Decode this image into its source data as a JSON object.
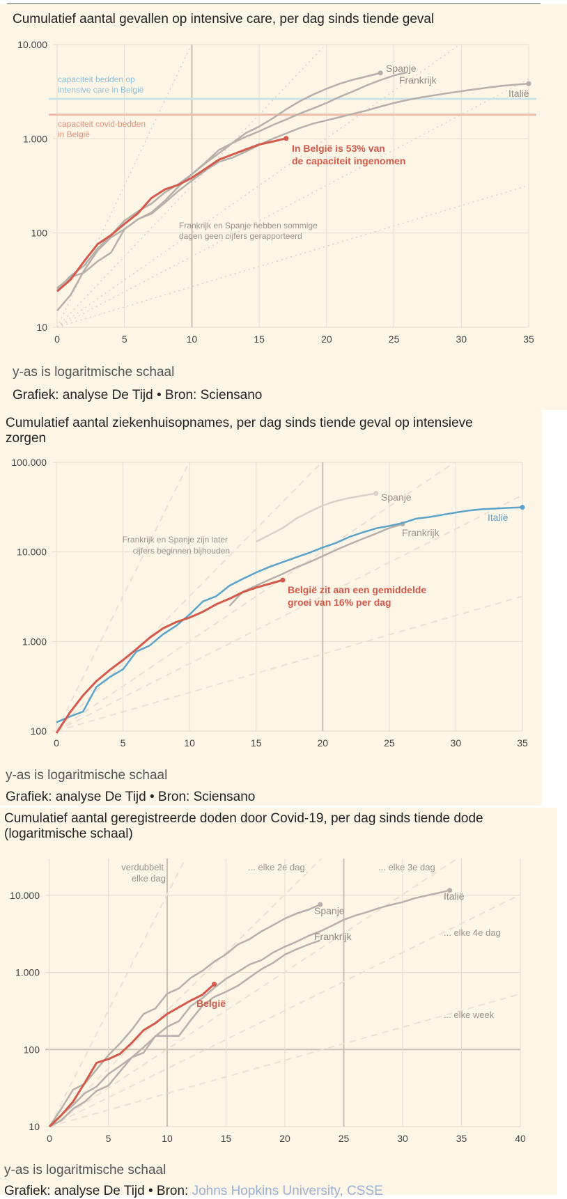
{
  "colors": {
    "belgium": "#d2594b",
    "italy_blue": "#5ba3c9",
    "gray_line": "#b5b0aa",
    "light_line": "#d8d2c8",
    "capacity_ic": "#cfe2e8",
    "capacity_covid": "#ecbca8",
    "background": "#fdf5e6"
  },
  "charts": [
    {
      "title": "Cumulatief aantal gevallen op intensive care, per dag sinds tiende geval",
      "note": "y-as is logaritmische schaal",
      "source_prefix": "Grafiek: analyse De Tijd • Bron: ",
      "source_name": "Sciensano",
      "labels": {
        "spanje": "Spanje",
        "frankrijk": "Frankrijk",
        "italie": "Italië",
        "capacity_ic_line1": "capaciteit bedden op",
        "capacity_ic_line2": "intensive care in België",
        "capacity_covid_line1": "capaciteit covid-bedden",
        "capacity_covid_line2": "in België",
        "annotation_line1": "In België is 53% van",
        "annotation_line2": "de capaciteit ingenomen",
        "gap_note_line1": "Frankrijk en Spanje hebben sommige",
        "gap_note_line2": "dagen geen cijfers gerapporteerd"
      },
      "chart_data": {
        "type": "line",
        "y_scale": "log",
        "xlim": [
          0,
          35
        ],
        "ylim": [
          10,
          10000
        ],
        "x_ticks": [
          0,
          5,
          10,
          15,
          20,
          25,
          30,
          35
        ],
        "y_ticks": [
          10,
          100,
          1000,
          10000
        ],
        "y_tick_labels": [
          "10",
          "100",
          "1.000",
          "10.000"
        ],
        "capacity_lines": [
          {
            "name": "capaciteit bedden op intensive care in België",
            "value": 2650
          },
          {
            "name": "capaciteit covid-bedden in België",
            "value": 1800
          }
        ],
        "series": [
          {
            "key": "spanje",
            "x": [
              0,
              1,
              2,
              3,
              4,
              5,
              6,
              7,
              8,
              9,
              10,
              11,
              12,
              13,
              14,
              15,
              16,
              17,
              18,
              19,
              20,
              21,
              22,
              23,
              24
            ],
            "y": [
              25,
              35,
              45,
              68,
              95,
              135,
              170,
              205,
              270,
              330,
              420,
              550,
              700,
              900,
              1150,
              1350,
              1650,
              2050,
              2500,
              2950,
              3400,
              3850,
              4250,
              4600,
              5000
            ],
            "endpoint": true
          },
          {
            "key": "frankrijk",
            "x": [
              0,
              1,
              2,
              3,
              4,
              5,
              6,
              7,
              8,
              9,
              10,
              11,
              12,
              13,
              14,
              15,
              16,
              17,
              18,
              19,
              20,
              21,
              22,
              23,
              24,
              25,
              26
            ],
            "y": [
              15,
              22,
              40,
              65,
              90,
              110,
              140,
              165,
              220,
              310,
              420,
              560,
              760,
              900,
              1050,
              1200,
              1400,
              1600,
              1850,
              2100,
              2400,
              2800,
              3200,
              3700,
              4200,
              4700,
              5100
            ],
            "endpoint": false
          },
          {
            "key": "italie",
            "x": [
              0,
              1,
              2,
              3,
              4,
              5,
              6,
              7,
              8,
              9,
              10,
              11,
              12,
              13,
              14,
              15,
              16,
              17,
              18,
              19,
              20,
              21,
              22,
              23,
              24,
              25,
              26,
              27,
              28,
              29,
              30,
              31,
              32,
              33,
              34,
              35
            ],
            "y": [
              26,
              34,
              38,
              50,
              62,
              110,
              140,
              160,
              210,
              280,
              360,
              460,
              570,
              630,
              730,
              860,
              1000,
              1140,
              1300,
              1450,
              1570,
              1700,
              1850,
              2000,
              2200,
              2400,
              2580,
              2750,
              2900,
              3050,
              3200,
              3350,
              3500,
              3650,
              3750,
              3850
            ],
            "endpoint": true
          },
          {
            "key": "belgie",
            "x": [
              0,
              1,
              2,
              3,
              4,
              5,
              6,
              7,
              8,
              9,
              10,
              11,
              12,
              13,
              14,
              15,
              16,
              17
            ],
            "y": [
              24,
              32,
              50,
              76,
              95,
              125,
              162,
              235,
              290,
              325,
              385,
              480,
              600,
              680,
              770,
              870,
              935,
              1010
            ],
            "endpoint": true
          }
        ],
        "reference_slopes_days": [
          1,
          2,
          3,
          4,
          7
        ]
      }
    },
    {
      "title": "Cumulatief aantal ziekenhuisopnames, per dag sinds tiende geval op intensieve zorgen",
      "title_line1": "Cumulatief aantal ziekenhuisopnames, per dag sinds tiende geval op intensieve",
      "title_line2": "zorgen",
      "note": "y-as is logaritmische schaal",
      "source_prefix": "Grafiek: analyse De Tijd • Bron: ",
      "source_name": "Sciensano",
      "labels": {
        "spanje": "Spanje",
        "frankrijk": "Frankrijk",
        "italie": "Italië",
        "gap_note_line1": "Frankrijk en Spanje zijn later",
        "gap_note_line2": "cijfers beginnen bijhouden",
        "annotation_line1": "België zit aan een gemiddelde",
        "annotation_line2": "groei van 16% per dag"
      },
      "chart_data": {
        "type": "line",
        "y_scale": "log",
        "xlim": [
          0,
          35
        ],
        "ylim": [
          100,
          100000
        ],
        "x_ticks": [
          0,
          5,
          10,
          15,
          20,
          25,
          30,
          35
        ],
        "y_ticks": [
          100,
          1000,
          10000,
          100000
        ],
        "y_tick_labels": [
          "100",
          "1.000",
          "10.000",
          "100.000"
        ],
        "series": [
          {
            "key": "spanje",
            "x": [
              15,
              16,
              17,
              18,
              19,
              20,
              21,
              22,
              23,
              24
            ],
            "y": [
              13000,
              15500,
              18500,
              23500,
              28000,
              33000,
              37000,
              40000,
              42500,
              45000
            ],
            "endpoint": true
          },
          {
            "key": "frankrijk",
            "x": [
              13,
              14,
              15,
              16,
              17,
              18,
              19,
              20,
              21,
              22,
              23,
              24,
              25,
              26
            ],
            "y": [
              2500,
              3600,
              4200,
              4900,
              5700,
              6700,
              7700,
              9000,
              10500,
              12200,
              14000,
              16000,
              18500,
              20500
            ],
            "endpoint": true
          },
          {
            "key": "italie",
            "x": [
              0,
              1,
              2,
              3,
              4,
              5,
              6,
              7,
              8,
              9,
              10,
              11,
              12,
              13,
              14,
              15,
              16,
              17,
              18,
              19,
              20,
              21,
              22,
              23,
              24,
              25,
              26,
              27,
              28,
              29,
              30,
              31,
              32,
              33,
              34,
              35
            ],
            "y": [
              125,
              145,
              165,
              310,
              400,
              490,
              770,
              900,
              1200,
              1500,
              2000,
              2800,
              3200,
              4200,
              5000,
              5900,
              6800,
              7700,
              8700,
              9800,
              11200,
              12600,
              14700,
              16500,
              18300,
              19500,
              21000,
              23500,
              24500,
              26000,
              27500,
              29000,
              30000,
              30500,
              31000,
              31500
            ],
            "endpoint": true
          },
          {
            "key": "belgie",
            "x": [
              0,
              1,
              2,
              3,
              4,
              5,
              6,
              7,
              8,
              9,
              10,
              11,
              12,
              13,
              14,
              15,
              16,
              17
            ],
            "y": [
              95,
              160,
              250,
              360,
              480,
              620,
              820,
              1100,
              1400,
              1650,
              1850,
              2150,
              2600,
              3000,
              3550,
              4000,
              4400,
              4850
            ],
            "endpoint": true
          }
        ],
        "reference_slopes_days": [
          1,
          2,
          3,
          4,
          7
        ]
      }
    },
    {
      "title": "Cumulatief aantal geregistreerde doden door Covid-19, per dag sinds tiende dode (logaritmische schaal)",
      "title_line1": "Cumulatief aantal geregistreerde doden door Covid-19, per dag sinds tiende dode",
      "title_line2": "(logaritmische schaal)",
      "note": "y-as is logaritmische schaal",
      "source_prefix": "Grafiek: analyse De Tijd • Bron: ",
      "source_name": "Johns Hopkins University, CSSE",
      "labels": {
        "spanje": "Spanje",
        "frankrijk": "Frankrijk",
        "italie": "Italië",
        "belgie": "België",
        "ref1_line1": "verdubbelt",
        "ref1_line2": "elke dag",
        "ref2": "... elke 2e dag",
        "ref3": "... elke 3e dag",
        "ref4": "... elke 4e dag",
        "ref7": "... elke week"
      },
      "chart_data": {
        "type": "line",
        "y_scale": "log",
        "xlim": [
          0,
          40
        ],
        "ylim": [
          10,
          30000
        ],
        "x_ticks": [
          0,
          5,
          10,
          15,
          20,
          25,
          30,
          35,
          40
        ],
        "y_ticks": [
          10,
          100,
          1000,
          10000
        ],
        "y_tick_labels": [
          "10",
          "100",
          "1.000",
          "10.000"
        ],
        "series": [
          {
            "key": "spanje",
            "x": [
              0,
              1,
              2,
              3,
              4,
              5,
              6,
              7,
              8,
              9,
              10,
              11,
              12,
              13,
              14,
              15,
              16,
              17,
              18,
              19,
              20,
              21,
              22,
              23
            ],
            "y": [
              10,
              17,
              30,
              36,
              55,
              84,
              120,
              180,
              290,
              340,
              530,
              620,
              850,
              1050,
              1380,
              1720,
              2300,
              2700,
              3400,
              4100,
              5000,
              5800,
              6500,
              7600
            ],
            "endpoint": true
          },
          {
            "key": "frankrijk",
            "x": [
              0,
              1,
              2,
              3,
              4,
              5,
              6,
              7,
              8,
              9,
              10,
              11,
              12,
              13,
              14,
              15,
              16,
              17,
              18,
              19,
              20,
              21,
              22,
              23
            ],
            "y": [
              10,
              14,
              19,
              27,
              33,
              48,
              61,
              79,
              91,
              150,
              150,
              150,
              240,
              370,
              480,
              560,
              670,
              860,
              1100,
              1330,
              1700,
              2000,
              2300,
              2600
            ],
            "endpoint": false
          },
          {
            "key": "italie",
            "x": [
              0,
              1,
              2,
              3,
              4,
              5,
              6,
              7,
              8,
              9,
              10,
              11,
              12,
              13,
              14,
              15,
              16,
              17,
              18,
              19,
              20,
              21,
              22,
              23,
              24,
              25,
              26,
              27,
              28,
              29,
              30,
              31,
              32,
              33,
              34
            ],
            "y": [
              10,
              12,
              17,
              21,
              29,
              34,
              52,
              79,
              107,
              148,
              197,
              233,
              366,
              463,
              631,
              827,
              1016,
              1266,
              1441,
              1809,
              2158,
              2503,
              2978,
              3405,
              4032,
              4825,
              5476,
              6077,
              6820,
              7503,
              8165,
              9134,
              9900,
              10700,
              11600
            ],
            "endpoint": true
          },
          {
            "key": "belgie",
            "x": [
              0,
              1,
              2,
              3,
              4,
              5,
              6,
              7,
              8,
              9,
              10,
              11,
              12,
              13,
              14
            ],
            "y": [
              10,
              14,
              21,
              37,
              67,
              75,
              88,
              122,
              178,
              220,
              289,
              353,
              431,
              513,
              705
            ],
            "endpoint": true
          }
        ],
        "reference_slopes_days": [
          1,
          2,
          3,
          4,
          7
        ]
      }
    }
  ]
}
